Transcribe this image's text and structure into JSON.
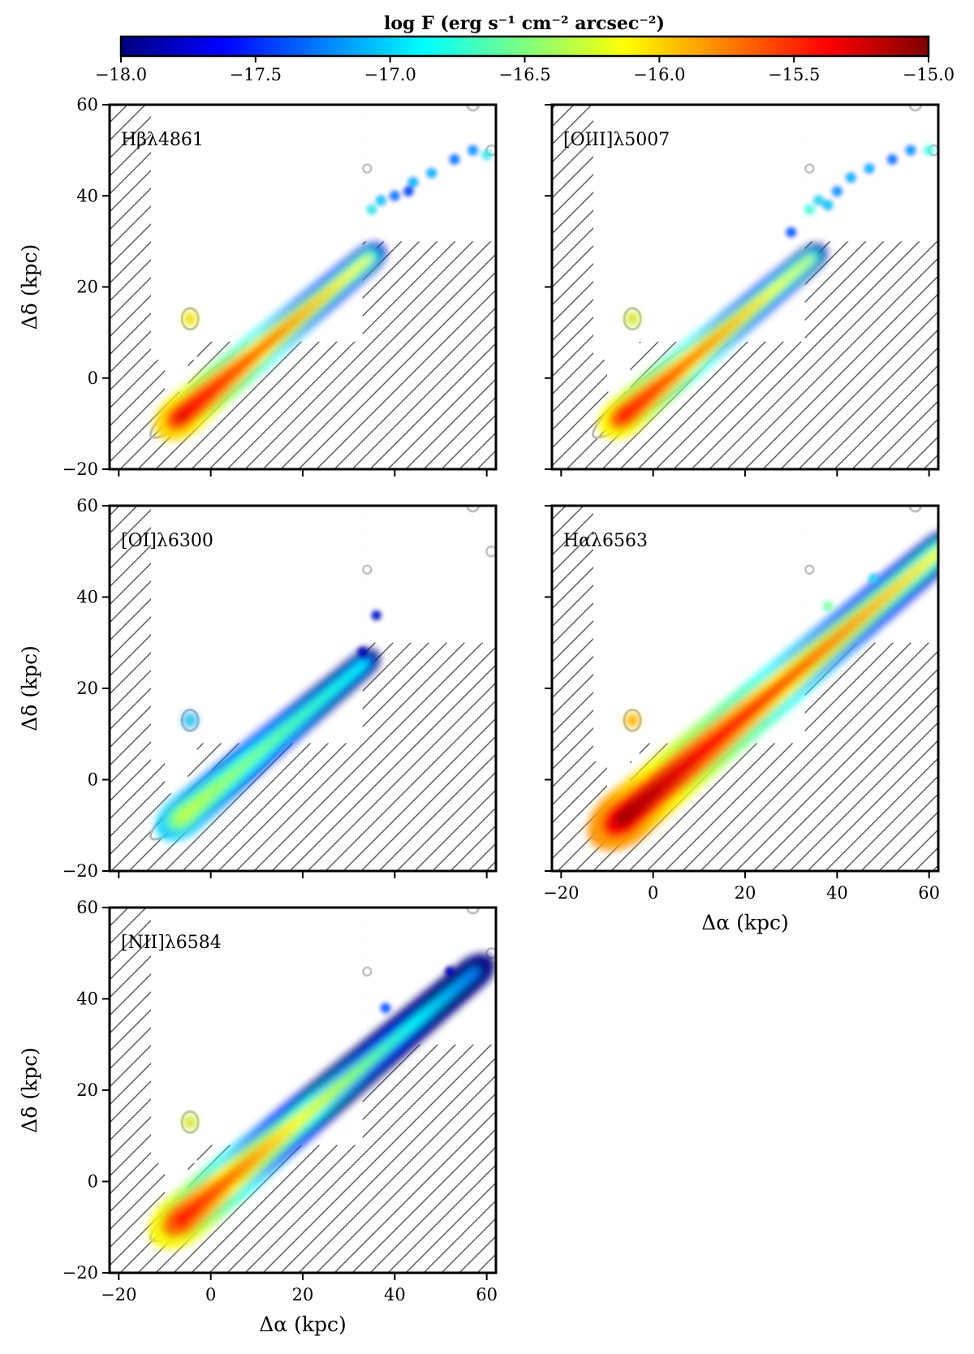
{
  "chart_data": {
    "type": "heatmap",
    "figure_description_units": "kpc",
    "colorbar": {
      "title": "log F (erg s⁻¹ cm⁻² arcsec⁻²)",
      "min": -18.0,
      "max": -15.0,
      "ticks": [
        -18.0,
        -17.5,
        -17.0,
        -16.5,
        -16.0,
        -15.5,
        -15.0
      ],
      "tick_labels": [
        "−18.0",
        "−17.5",
        "−17.0",
        "−16.5",
        "−16.0",
        "−15.5",
        "−15.0"
      ],
      "colormap": [
        "#00007f",
        "#0000ff",
        "#007fff",
        "#00ffff",
        "#7fff7f",
        "#ffff00",
        "#ff7f00",
        "#ff0000",
        "#7f0000"
      ]
    },
    "axes": {
      "xlabel": "Δα (kpc)",
      "ylabel": "Δδ (kpc)",
      "xlim": [
        -22,
        62
      ],
      "ylim": [
        -20,
        60
      ],
      "xticks": [
        -20,
        0,
        20,
        40,
        60
      ],
      "xtick_labels": [
        "−20",
        "0",
        "20",
        "40",
        "60"
      ],
      "yticks": [
        -20,
        0,
        20,
        40,
        60
      ],
      "ytick_labels": [
        "−20",
        "0",
        "20",
        "40",
        "60"
      ]
    },
    "panels": [
      {
        "id": "hbeta",
        "label": "Hβλ4861",
        "peak_log_flux": -15.1,
        "tail_extent_kpc": [
          55,
          50
        ],
        "clump_count": 9
      },
      {
        "id": "oiii",
        "label": "[OIII]λ5007",
        "peak_log_flux": -15.2,
        "tail_extent_kpc": [
          55,
          50
        ],
        "clump_count": 10
      },
      {
        "id": "oi",
        "label": "[OI]λ6300",
        "peak_log_flux": -16.3,
        "tail_extent_kpc": [
          33,
          28
        ],
        "clump_count": 2
      },
      {
        "id": "halpha",
        "label": "Hαλ6563",
        "peak_log_flux": -15.0,
        "tail_extent_kpc": [
          60,
          52
        ],
        "clump_count": 4
      },
      {
        "id": "nii",
        "label": "[NII]λ6584",
        "peak_log_flux": -15.3,
        "tail_extent_kpc": [
          57,
          50
        ],
        "clump_count": 2
      }
    ]
  }
}
